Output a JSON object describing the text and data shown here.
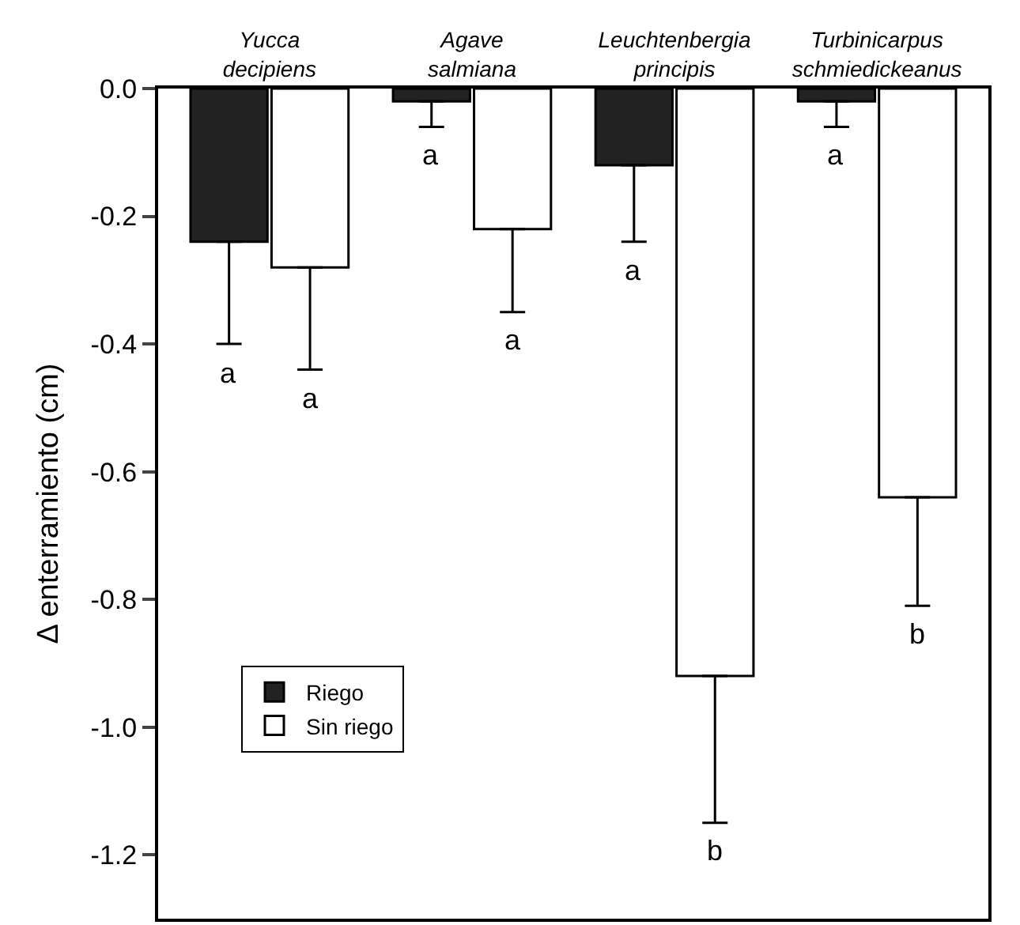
{
  "chart_data": {
    "type": "bar",
    "categories": [
      "Yucca decipiens",
      "Agave salmiana",
      "Leuchtenbergia principis",
      "Turbinicarpus schmiedickeanus"
    ],
    "ylabel": "Δ enterramiento (cm)",
    "series": [
      {
        "name": "Riego",
        "color": "#222222",
        "values": [
          -0.24,
          -0.02,
          -0.12,
          -0.02
        ],
        "errors": [
          [
            -0.4,
            -0.24
          ],
          [
            -0.06,
            -0.02
          ],
          [
            -0.24,
            -0.12
          ],
          [
            -0.06,
            -0.02
          ]
        ]
      },
      {
        "name": "Sin riego",
        "color": "#ffffff",
        "values": [
          -0.28,
          -0.22,
          -0.92,
          -0.64
        ],
        "errors": [
          [
            -0.44,
            -0.28
          ],
          [
            -0.35,
            -0.22
          ],
          [
            -1.15,
            -0.92
          ],
          [
            -0.81,
            -0.64
          ]
        ]
      }
    ],
    "ylim": [
      -1.3,
      0
    ],
    "yticks": [
      {
        "value": 0,
        "label": "0.0"
      },
      -0.2,
      -0.4,
      -0.6,
      -0.8,
      {
        "value": -1.0,
        "label": "-1.0"
      },
      -1.2
    ],
    "annotations": [
      "a",
      "a",
      "a",
      "a",
      "a",
      "b",
      "a",
      "b"
    ],
    "legend": "bottom left"
  }
}
